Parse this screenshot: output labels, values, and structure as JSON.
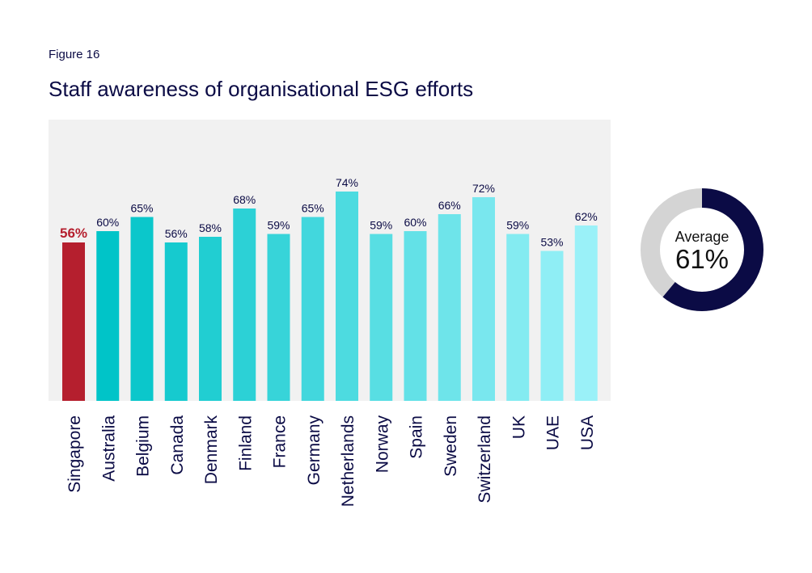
{
  "figure_label": "Figure 16",
  "chart_data": {
    "type": "bar",
    "title": "Staff awareness of organisational ESG efforts",
    "xlabel": "",
    "ylabel": "",
    "categories": [
      "Singapore",
      "Australia",
      "Belgium",
      "Canada",
      "Denmark",
      "Finland",
      "France",
      "Germany",
      "Netherlands",
      "Norway",
      "Spain",
      "Sweden",
      "Switzerland",
      "UK",
      "UAE",
      "USA"
    ],
    "values": [
      56,
      60,
      65,
      56,
      58,
      68,
      59,
      65,
      74,
      59,
      60,
      66,
      72,
      59,
      53,
      62
    ],
    "data_labels": [
      "56%",
      "60%",
      "65%",
      "56%",
      "58%",
      "68%",
      "59%",
      "65%",
      "74%",
      "59%",
      "60%",
      "66%",
      "72%",
      "59%",
      "53%",
      "62%"
    ],
    "ylim": [
      0,
      100
    ],
    "grid": false,
    "highlight_category": "Singapore",
    "colors": {
      "highlight": "#b51f2e",
      "gradient_start": "#00c4c8",
      "gradient_end": "#9af1f8",
      "plot_background": "#f1f1f1",
      "label_text": "#0b0b45",
      "highlight_label_text": "#b51f2e"
    },
    "average": {
      "caption": "Average",
      "value": 61,
      "label": "61%",
      "fill_color": "#0b0b45",
      "track_color": "#d4d4d4"
    }
  }
}
